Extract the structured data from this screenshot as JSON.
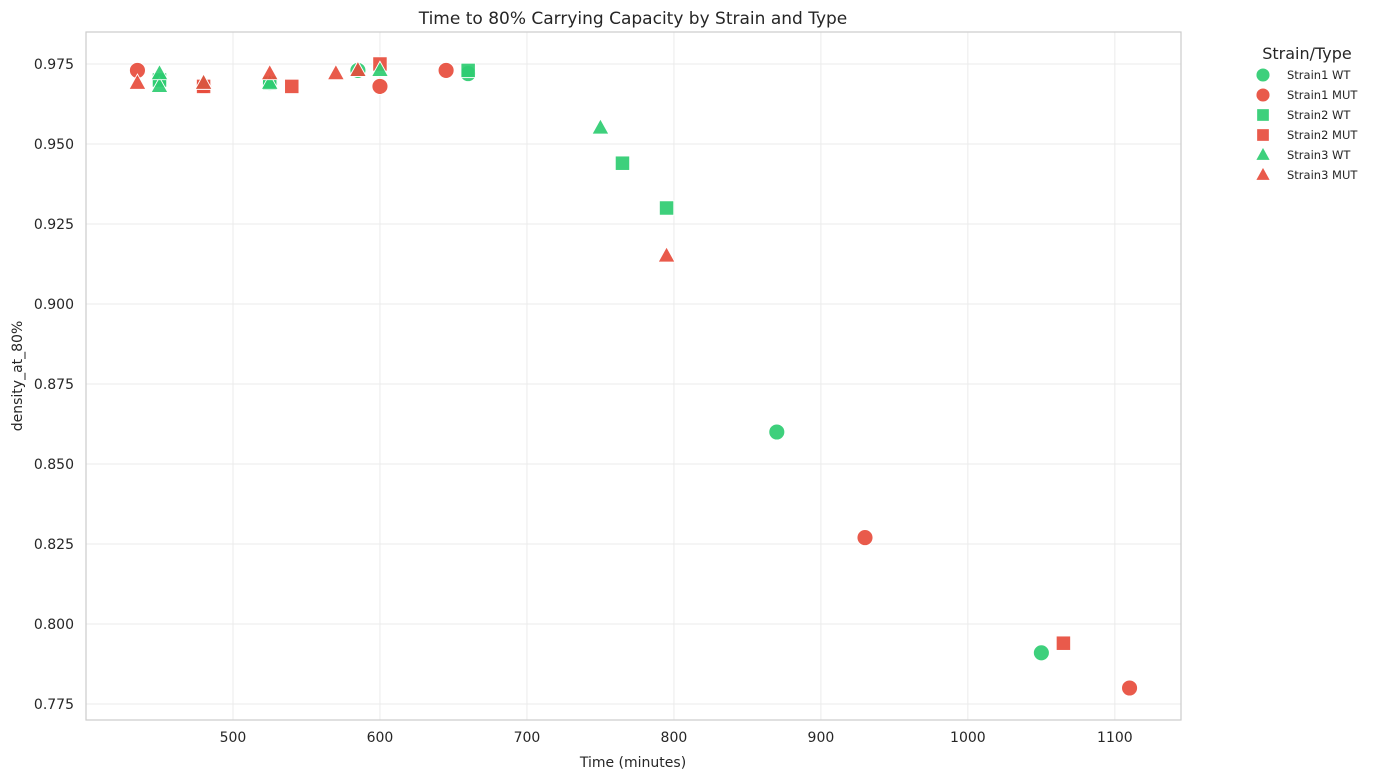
{
  "chart_data": {
    "type": "scatter",
    "title": "Time to 80% Carrying Capacity by Strain and Type",
    "xlabel": "Time (minutes)",
    "ylabel": "density_at_80%",
    "xlim": [
      400,
      1145
    ],
    "ylim": [
      0.77,
      0.985
    ],
    "xticks": [
      500,
      600,
      700,
      800,
      900,
      1000,
      1100
    ],
    "yticks": [
      0.775,
      0.8,
      0.825,
      0.85,
      0.875,
      0.9,
      0.925,
      0.95,
      0.975
    ],
    "ytick_labels": [
      "0.775",
      "0.800",
      "0.825",
      "0.850",
      "0.875",
      "0.900",
      "0.925",
      "0.950",
      "0.975"
    ],
    "grid": true,
    "legend": {
      "title": "Strain/Type",
      "position": "outside-right"
    },
    "series": [
      {
        "name": "Strain1 WT",
        "marker": "circle",
        "color": "#2ecc71",
        "points": [
          [
            450,
            0.97
          ],
          [
            525,
            0.969
          ],
          [
            585,
            0.973
          ],
          [
            660,
            0.972
          ],
          [
            870,
            0.86
          ],
          [
            1050,
            0.791
          ]
        ]
      },
      {
        "name": "Strain1 MUT",
        "marker": "circle",
        "color": "#e74c3c",
        "points": [
          [
            435,
            0.973
          ],
          [
            480,
            0.968
          ],
          [
            600,
            0.968
          ],
          [
            645,
            0.973
          ],
          [
            930,
            0.827
          ],
          [
            1110,
            0.78
          ]
        ]
      },
      {
        "name": "Strain2 WT",
        "marker": "square",
        "color": "#2ecc71",
        "points": [
          [
            450,
            0.97
          ],
          [
            525,
            0.969
          ],
          [
            660,
            0.973
          ],
          [
            765,
            0.944
          ],
          [
            795,
            0.93
          ]
        ]
      },
      {
        "name": "Strain2 MUT",
        "marker": "square",
        "color": "#e74c3c",
        "points": [
          [
            480,
            0.968
          ],
          [
            540,
            0.968
          ],
          [
            600,
            0.975
          ],
          [
            1065,
            0.794
          ]
        ]
      },
      {
        "name": "Strain3 WT",
        "marker": "triangle",
        "color": "#2ecc71",
        "points": [
          [
            450,
            0.968
          ],
          [
            450,
            0.972
          ],
          [
            480,
            0.969
          ],
          [
            525,
            0.969
          ],
          [
            585,
            0.973
          ],
          [
            600,
            0.973
          ],
          [
            750,
            0.955
          ]
        ]
      },
      {
        "name": "Strain3 MUT",
        "marker": "triangle",
        "color": "#e74c3c",
        "points": [
          [
            435,
            0.969
          ],
          [
            480,
            0.969
          ],
          [
            525,
            0.972
          ],
          [
            570,
            0.972
          ],
          [
            585,
            0.973
          ],
          [
            795,
            0.915
          ]
        ]
      }
    ]
  }
}
